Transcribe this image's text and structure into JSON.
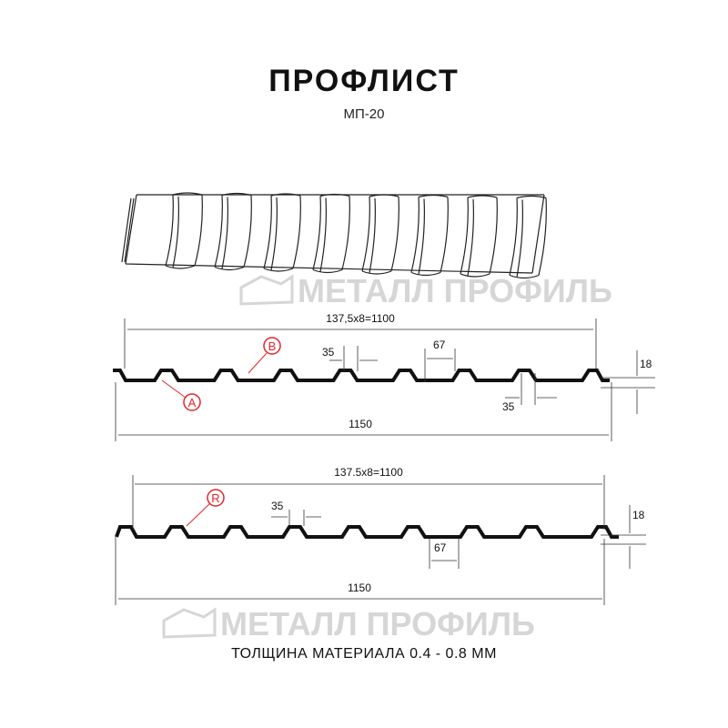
{
  "title": "ПРОФЛИСТ",
  "subtitle": "МП-20",
  "footer": "ТОЛЩИНА МАТЕРИАЛА 0.4 - 0.8 ММ",
  "watermark": "МЕТАЛЛ ПРОФИЛЬ",
  "colors": {
    "profile": "#111111",
    "callout": "#e0262a",
    "watermark": "#d6d6d6"
  },
  "profile_a": {
    "pitch_label": "137,5x8=1100",
    "width_label": "1150",
    "height_label": "18",
    "rib_top_label": "35",
    "rib_bottom_label": "35",
    "valley_label": "67",
    "callout_a": "A",
    "callout_b": "B"
  },
  "profile_b": {
    "pitch_label": "137.5x8=1100",
    "width_label": "1150",
    "height_label": "18",
    "rib_top_label": "35",
    "valley_label": "67",
    "callout_r": "R"
  }
}
